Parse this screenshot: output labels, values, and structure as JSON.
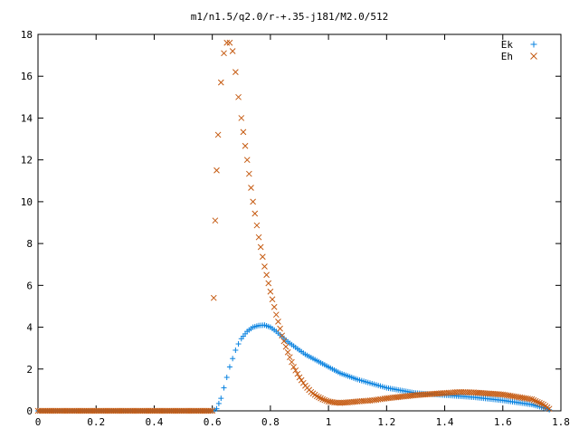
{
  "chart_data": {
    "type": "scatter",
    "title": "m1/n1.5/q2.0/r-+.35-j181/M2.0/512",
    "xlabel": "",
    "ylabel": "",
    "xlim": [
      0,
      1.8
    ],
    "ylim": [
      0,
      18
    ],
    "grid": false,
    "legend_position": "top-right",
    "x_ticks": [
      0,
      0.2,
      0.4,
      0.6,
      0.8,
      1,
      1.2,
      1.4,
      1.6,
      1.8
    ],
    "x_tick_labels": [
      "0",
      "0.2",
      "0.4",
      "0.6",
      "0.8",
      "1",
      "1.2",
      "1.4",
      "1.6",
      "1.8"
    ],
    "y_ticks": [
      0,
      2,
      4,
      6,
      8,
      10,
      12,
      14,
      16,
      18
    ],
    "y_tick_labels": [
      "0",
      "2",
      "4",
      "6",
      "8",
      "10",
      "12",
      "14",
      "16",
      "18"
    ],
    "series": [
      {
        "name": "Ek",
        "marker": "+",
        "color": "#0a83e0",
        "x": [
          0.0,
          0.1,
          0.2,
          0.3,
          0.4,
          0.5,
          0.6,
          0.615,
          0.63,
          0.64,
          0.65,
          0.66,
          0.67,
          0.68,
          0.69,
          0.7,
          0.72,
          0.74,
          0.76,
          0.78,
          0.8,
          0.82,
          0.84,
          0.86,
          0.88,
          0.9,
          0.92,
          0.94,
          0.96,
          0.98,
          1.0,
          1.02,
          1.04,
          1.06,
          1.08,
          1.1,
          1.15,
          1.2,
          1.3,
          1.4,
          1.5,
          1.6,
          1.7,
          1.74,
          1.76
        ],
        "y": [
          0,
          0,
          0,
          0,
          0,
          0,
          0,
          0.1,
          0.6,
          1.1,
          1.6,
          2.1,
          2.5,
          2.9,
          3.2,
          3.45,
          3.8,
          4.0,
          4.08,
          4.1,
          4.0,
          3.8,
          3.55,
          3.3,
          3.1,
          2.9,
          2.7,
          2.55,
          2.4,
          2.25,
          2.1,
          1.95,
          1.8,
          1.7,
          1.6,
          1.5,
          1.3,
          1.1,
          0.85,
          0.75,
          0.65,
          0.5,
          0.3,
          0.15,
          0.05
        ]
      },
      {
        "name": "Eh",
        "marker": "x",
        "color": "#c55a11",
        "x": [
          0.0,
          0.1,
          0.2,
          0.3,
          0.4,
          0.5,
          0.6,
          0.605,
          0.61,
          0.615,
          0.62,
          0.63,
          0.64,
          0.65,
          0.66,
          0.67,
          0.68,
          0.69,
          0.7,
          0.72,
          0.74,
          0.76,
          0.78,
          0.8,
          0.82,
          0.84,
          0.86,
          0.88,
          0.9,
          0.92,
          0.94,
          0.96,
          0.98,
          1.0,
          1.02,
          1.04,
          1.06,
          1.08,
          1.1,
          1.15,
          1.2,
          1.3,
          1.4,
          1.45,
          1.5,
          1.6,
          1.7,
          1.74,
          1.76
        ],
        "y": [
          0,
          0,
          0,
          0,
          0,
          0,
          0,
          5.4,
          9.1,
          11.5,
          13.2,
          15.7,
          17.1,
          17.6,
          17.6,
          17.2,
          16.2,
          15.0,
          14.0,
          12.0,
          10.0,
          8.3,
          6.9,
          5.7,
          4.6,
          3.6,
          2.8,
          2.1,
          1.6,
          1.2,
          0.9,
          0.7,
          0.55,
          0.45,
          0.4,
          0.38,
          0.4,
          0.42,
          0.45,
          0.5,
          0.6,
          0.75,
          0.85,
          0.9,
          0.88,
          0.78,
          0.55,
          0.3,
          0.1
        ]
      }
    ]
  }
}
